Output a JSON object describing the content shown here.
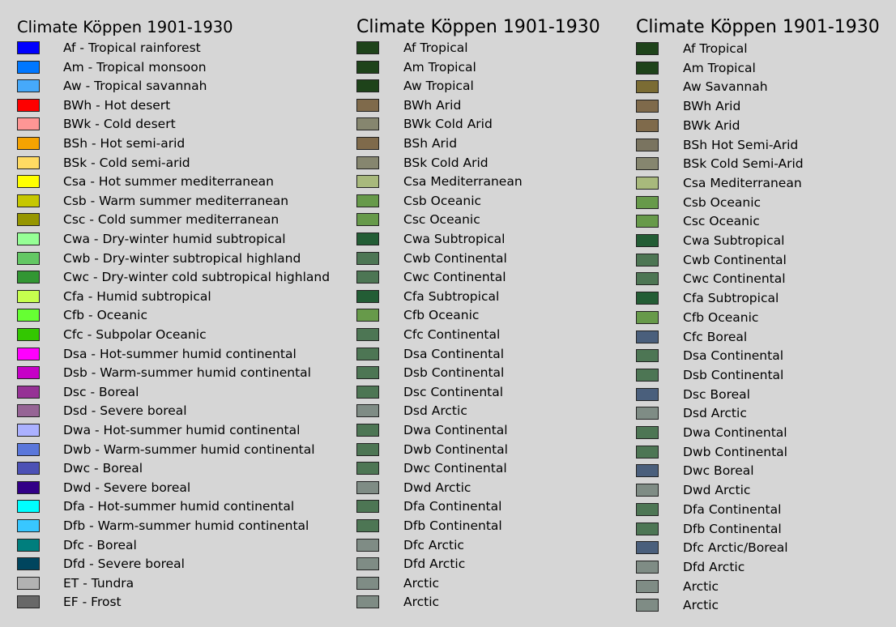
{
  "legends": [
    {
      "title": "Climate Köppen 1901-1930",
      "items": [
        {
          "label": "Af - Tropical rainforest",
          "color": "#0000fe"
        },
        {
          "label": "Am - Tropical monsoon",
          "color": "#0077ff"
        },
        {
          "label": "Aw - Tropical savannah",
          "color": "#46a9fa"
        },
        {
          "label": "BWh - Hot desert",
          "color": "#fe0000"
        },
        {
          "label": "BWk - Cold desert",
          "color": "#fe9695"
        },
        {
          "label": "BSh - Hot semi-arid",
          "color": "#f5a301"
        },
        {
          "label": "BSk - Cold semi-arid",
          "color": "#ffdb63"
        },
        {
          "label": "Csa - Hot summer mediterranean",
          "color": "#ffff00"
        },
        {
          "label": "Csb - Warm summer mediterranean",
          "color": "#c6c700"
        },
        {
          "label": "Csc - Cold summer mediterranean",
          "color": "#969600"
        },
        {
          "label": "Cwa - Dry-winter humid subtropical",
          "color": "#96ff96"
        },
        {
          "label": "Cwb - Dry-winter subtropical highland",
          "color": "#63c764"
        },
        {
          "label": "Cwc - Dry-winter cold subtropical highland",
          "color": "#329633"
        },
        {
          "label": "Cfa - Humid subtropical",
          "color": "#c6ff4e"
        },
        {
          "label": "Cfb - Oceanic",
          "color": "#66ff33"
        },
        {
          "label": "Cfc - Subpolar Oceanic",
          "color": "#33c701"
        },
        {
          "label": "Dsa - Hot-summer humid continental",
          "color": "#ff00fe"
        },
        {
          "label": "Dsb - Warm-summer humid continental",
          "color": "#c600c7"
        },
        {
          "label": "Dsc - Boreal",
          "color": "#963295"
        },
        {
          "label": "Dsd - Severe boreal",
          "color": "#966495"
        },
        {
          "label": "Dwa - Hot-summer humid continental",
          "color": "#abb1ff"
        },
        {
          "label": "Dwb - Warm-summer humid continental",
          "color": "#5a77db"
        },
        {
          "label": "Dwc - Boreal",
          "color": "#4c51b5"
        },
        {
          "label": "Dwd - Severe boreal",
          "color": "#320087"
        },
        {
          "label": "Dfa - Hot-summer humid continental",
          "color": "#00ffff"
        },
        {
          "label": "Dfb - Warm-summer humid continental",
          "color": "#38c7ff"
        },
        {
          "label": "Dfc - Boreal",
          "color": "#007e7d"
        },
        {
          "label": "Dfd - Severe boreal",
          "color": "#00455e"
        },
        {
          "label": "ET - Tundra",
          "color": "#b2b2b2"
        },
        {
          "label": "EF - Frost",
          "color": "#686868"
        }
      ]
    },
    {
      "title": "Climate Köppen 1901-1930",
      "items": [
        {
          "label": "Af Tropical",
          "color": "#1e431a"
        },
        {
          "label": "Am Tropical",
          "color": "#1e431a"
        },
        {
          "label": "Aw Tropical",
          "color": "#1e431a"
        },
        {
          "label": "BWh Arid",
          "color": "#7f6a4b"
        },
        {
          "label": "BWk Cold Arid",
          "color": "#86866f"
        },
        {
          "label": "BSh Arid",
          "color": "#7f6a4b"
        },
        {
          "label": "BSk Cold Arid",
          "color": "#86866f"
        },
        {
          "label": "Csa Mediterranean",
          "color": "#a8b97c"
        },
        {
          "label": "Csb Oceanic",
          "color": "#679a4a"
        },
        {
          "label": "Csc Oceanic",
          "color": "#679a4a"
        },
        {
          "label": "Cwa Subtropical",
          "color": "#235d35"
        },
        {
          "label": "Cwb Continental",
          "color": "#4d7654"
        },
        {
          "label": "Cwc Continental",
          "color": "#4d7654"
        },
        {
          "label": "Cfa Subtropical",
          "color": "#235d35"
        },
        {
          "label": "Cfb Oceanic",
          "color": "#679a4a"
        },
        {
          "label": "Cfc Continental",
          "color": "#4d7654"
        },
        {
          "label": "Dsa Continental",
          "color": "#4d7654"
        },
        {
          "label": "Dsb Continental",
          "color": "#4d7654"
        },
        {
          "label": "Dsc Continental",
          "color": "#4d7654"
        },
        {
          "label": "Dsd Arctic",
          "color": "#7f8c85"
        },
        {
          "label": "Dwa Continental",
          "color": "#4d7654"
        },
        {
          "label": "Dwb Continental",
          "color": "#4d7654"
        },
        {
          "label": "Dwc Continental",
          "color": "#4d7654"
        },
        {
          "label": "Dwd Arctic",
          "color": "#7f8c85"
        },
        {
          "label": "Dfa Continental",
          "color": "#4d7654"
        },
        {
          "label": "Dfb Continental",
          "color": "#4d7654"
        },
        {
          "label": "Dfc Arctic",
          "color": "#7f8c85"
        },
        {
          "label": "Dfd Arctic",
          "color": "#7f8c85"
        },
        {
          "label": "Arctic",
          "color": "#7f8c85"
        },
        {
          "label": "Arctic",
          "color": "#7f8c85"
        }
      ]
    },
    {
      "title": "Climate Köppen 1901-1930",
      "items": [
        {
          "label": "Af Tropical",
          "color": "#1e431a"
        },
        {
          "label": "Am Tropical",
          "color": "#1e431a"
        },
        {
          "label": "Aw Savannah",
          "color": "#7b6c34"
        },
        {
          "label": "BWh Arid",
          "color": "#7f6a4b"
        },
        {
          "label": "BWk Arid",
          "color": "#7f6a4b"
        },
        {
          "label": "BSh Hot Semi-Arid",
          "color": "#7a7460"
        },
        {
          "label": "BSk Cold Semi-Arid",
          "color": "#86866f"
        },
        {
          "label": "Csa Mediterranean",
          "color": "#a8b97c"
        },
        {
          "label": "Csb Oceanic",
          "color": "#679a4a"
        },
        {
          "label": "Csc Oceanic",
          "color": "#679a4a"
        },
        {
          "label": "Cwa Subtropical",
          "color": "#235d35"
        },
        {
          "label": "Cwb Continental",
          "color": "#4d7654"
        },
        {
          "label": "Cwc Continental",
          "color": "#4d7654"
        },
        {
          "label": "Cfa Subtropical",
          "color": "#235d35"
        },
        {
          "label": "Cfb Oceanic",
          "color": "#679a4a"
        },
        {
          "label": "Cfc Boreal",
          "color": "#4a5f7c"
        },
        {
          "label": "Dsa Continental",
          "color": "#4d7654"
        },
        {
          "label": "Dsb Continental",
          "color": "#4d7654"
        },
        {
          "label": "Dsc Boreal",
          "color": "#4a5f7c"
        },
        {
          "label": "Dsd Arctic",
          "color": "#7f8c85"
        },
        {
          "label": "Dwa Continental",
          "color": "#4d7654"
        },
        {
          "label": "Dwb Continental",
          "color": "#4d7654"
        },
        {
          "label": "Dwc Boreal",
          "color": "#4a5f7c"
        },
        {
          "label": "Dwd Arctic",
          "color": "#7f8c85"
        },
        {
          "label": "Dfa Continental",
          "color": "#4d7654"
        },
        {
          "label": "Dfb Continental",
          "color": "#4d7654"
        },
        {
          "label": "Dfc Arctic/Boreal",
          "color": "#4a5f7c"
        },
        {
          "label": "Dfd Arctic",
          "color": "#7f8c85"
        },
        {
          "label": "Arctic",
          "color": "#7f8c85"
        },
        {
          "label": "Arctic",
          "color": "#7f8c85"
        }
      ]
    }
  ]
}
